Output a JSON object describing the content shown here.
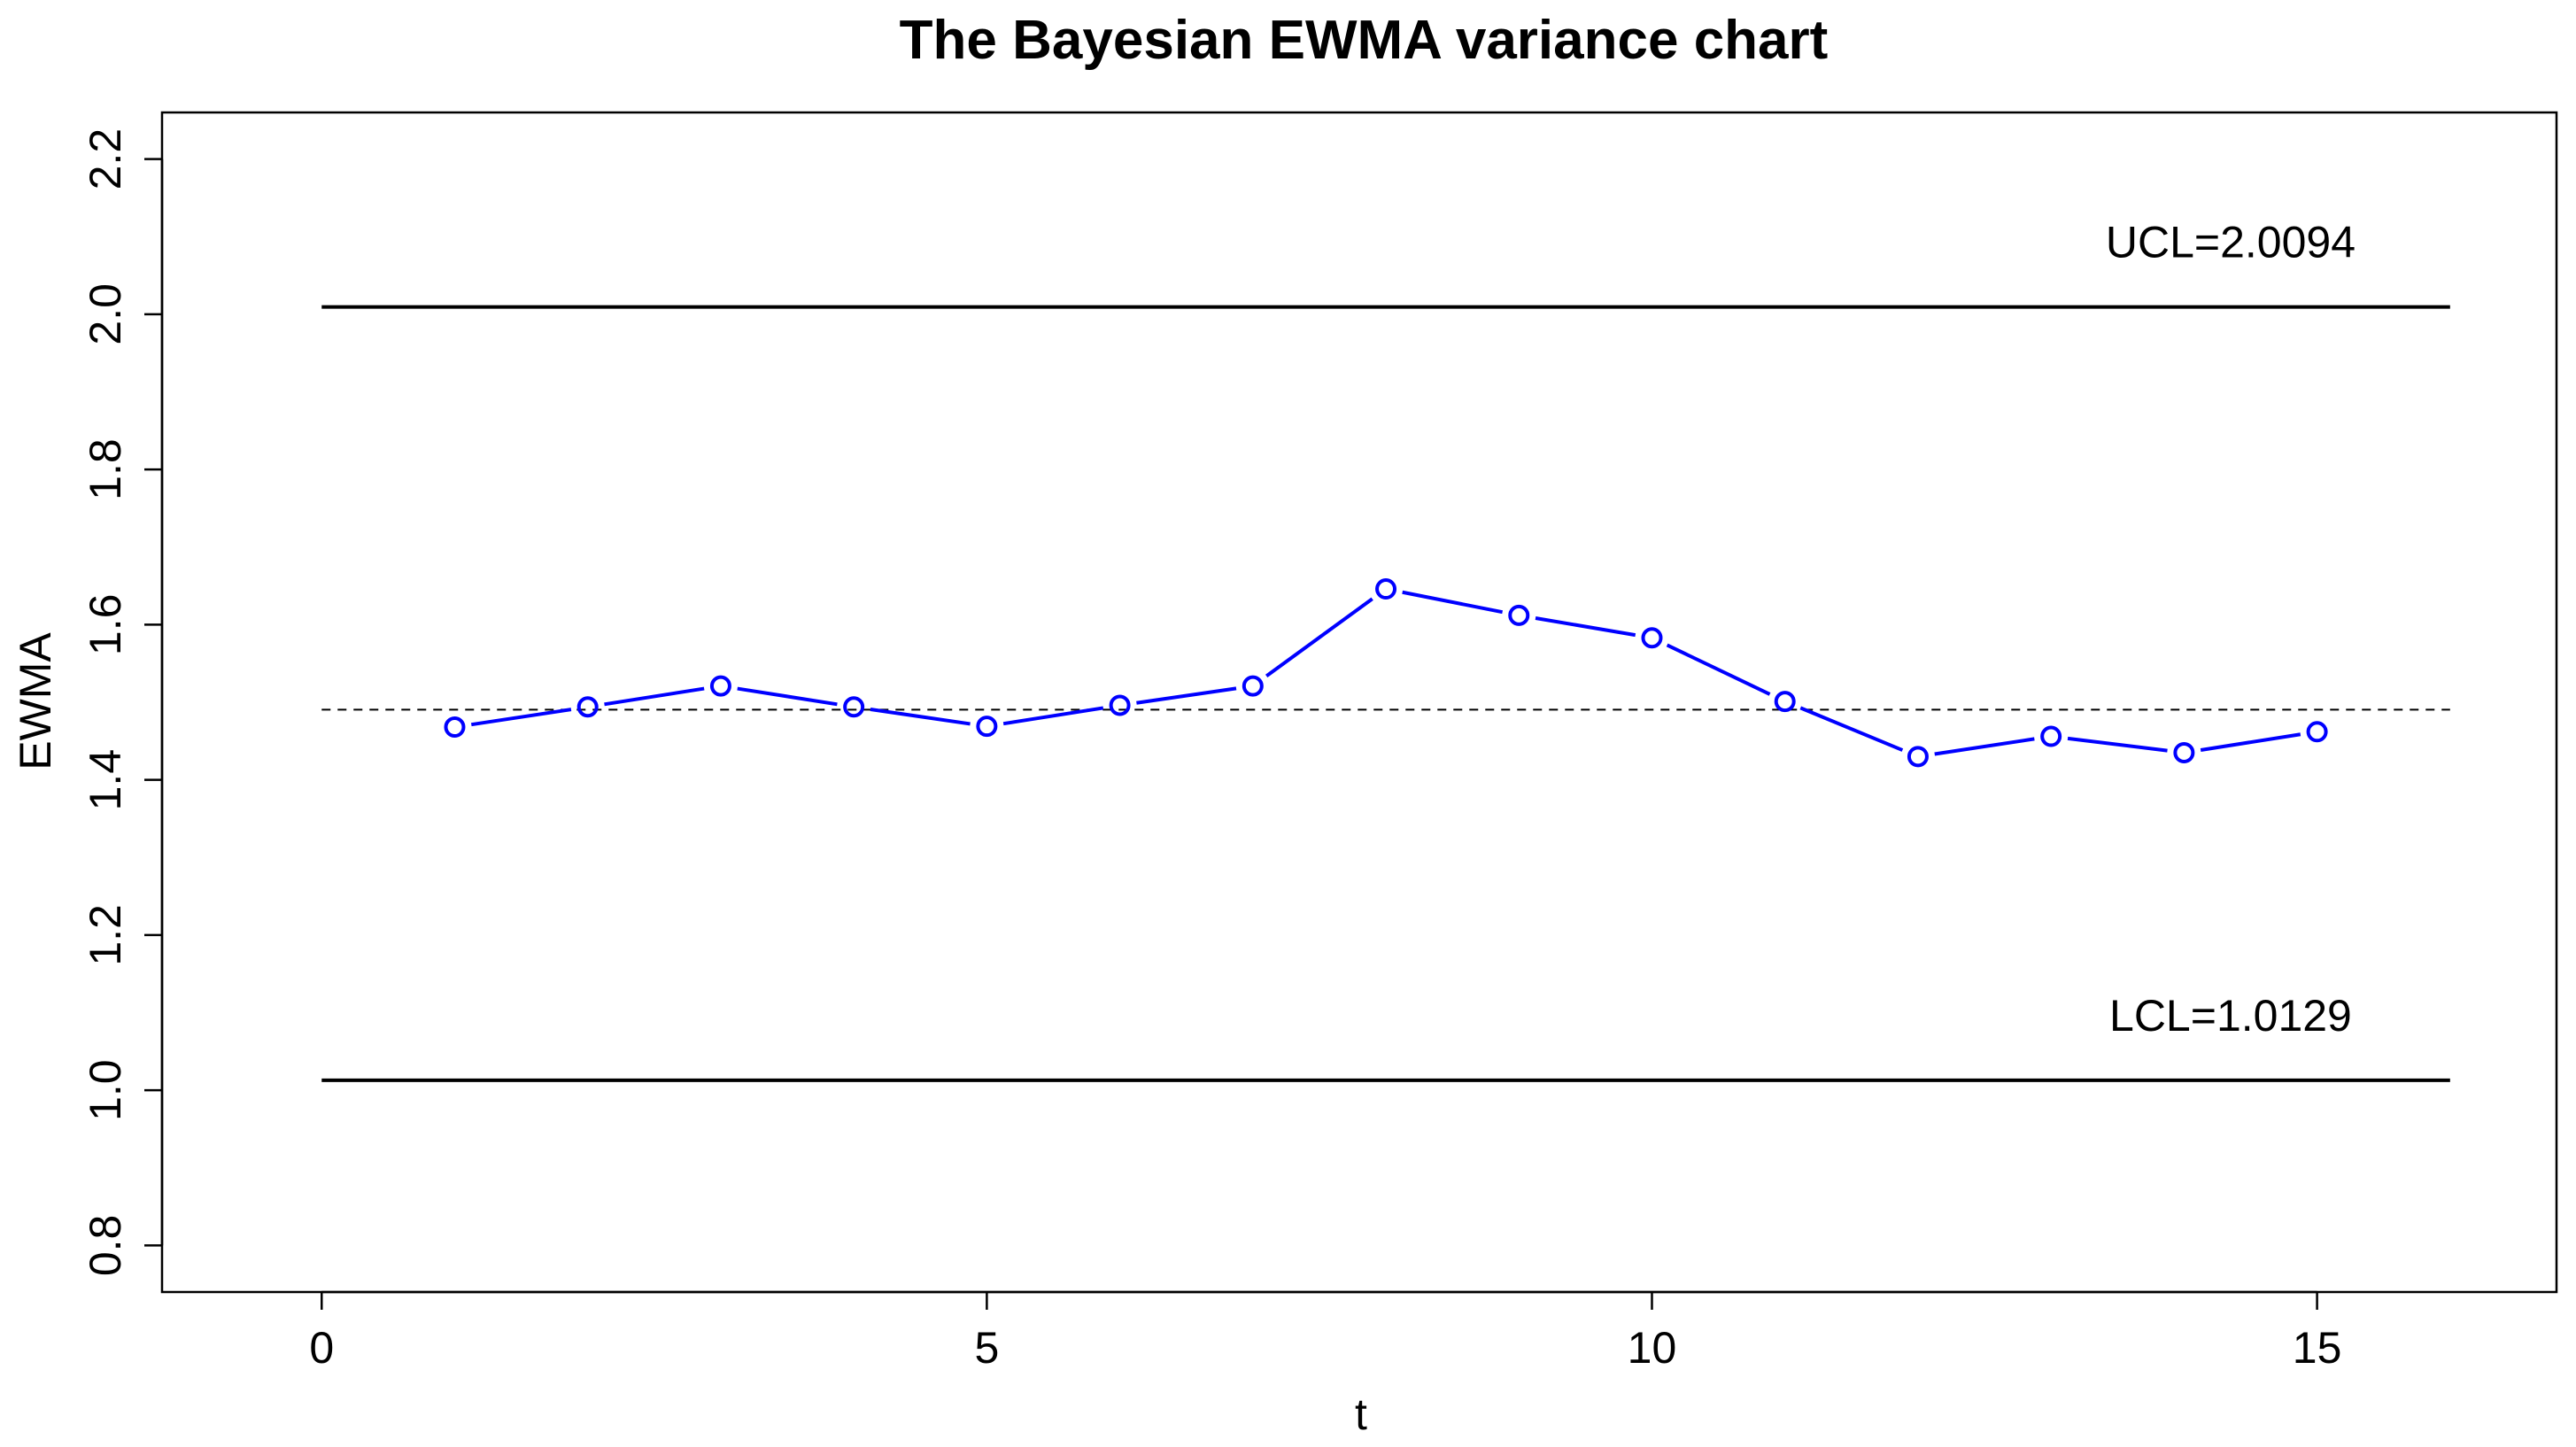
{
  "chart_data": {
    "type": "line",
    "title": "The Bayesian EWMA variance chart",
    "xlabel": "t",
    "ylabel": "EWMA",
    "xlim": [
      -1.2,
      16.8
    ],
    "ylim": [
      0.74,
      2.26
    ],
    "x_ticks": [
      "0",
      "5",
      "10",
      "15"
    ],
    "y_ticks": [
      "0.8",
      "1.0",
      "1.2",
      "1.4",
      "1.6",
      "1.8",
      "2.0",
      "2.2"
    ],
    "grid": false,
    "series": [
      {
        "color": "#0000ff",
        "x": [
          1,
          2,
          3,
          4,
          5,
          6,
          7,
          8,
          9,
          10,
          11,
          12,
          13,
          14,
          15
        ],
        "y": [
          1.468,
          1.494,
          1.521,
          1.494,
          1.469,
          1.496,
          1.521,
          1.646,
          1.612,
          1.583,
          1.501,
          1.43,
          1.456,
          1.435,
          1.462
        ]
      }
    ],
    "center_line": {
      "value": 1.4905
    },
    "limits": [
      {
        "label": "UCL=2.0094",
        "value": 2.0094
      },
      {
        "label": "LCL=1.0129",
        "value": 1.0129
      }
    ]
  }
}
